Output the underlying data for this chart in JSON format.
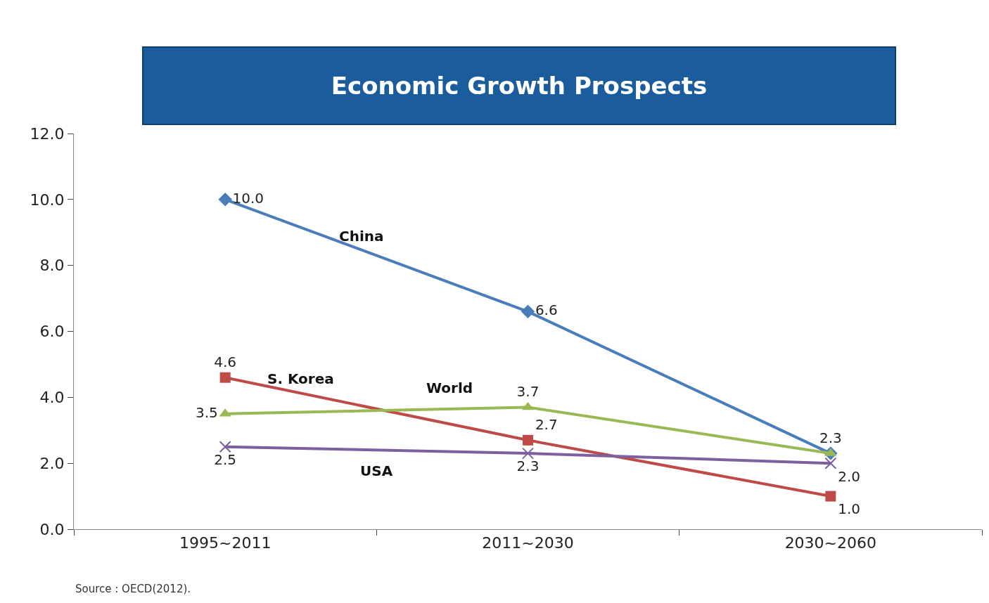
{
  "chart_data": {
    "type": "line",
    "title": "Economic Growth Prospects",
    "categories": [
      "1995~2011",
      "2011~2030",
      "2030~2060"
    ],
    "series": [
      {
        "name": "China",
        "color": "#4a7ebb",
        "marker": "diamond",
        "values": [
          10.0,
          6.6,
          2.3
        ],
        "value_labels": [
          "10.0",
          "6.6",
          "2.3"
        ]
      },
      {
        "name": "S. Korea",
        "color": "#be4b48",
        "marker": "square",
        "values": [
          4.6,
          2.7,
          1.0
        ],
        "value_labels": [
          "4.6",
          "2.7",
          "1.0"
        ]
      },
      {
        "name": "World",
        "color": "#98b954",
        "marker": "triangle",
        "values": [
          3.5,
          3.7,
          2.3
        ],
        "value_labels": [
          "3.5",
          "3.7",
          null
        ]
      },
      {
        "name": "USA",
        "color": "#7d60a0",
        "marker": "cross",
        "values": [
          2.5,
          2.3,
          2.0
        ],
        "value_labels": [
          "2.5",
          "2.3",
          "2.0"
        ]
      }
    ],
    "ylim": [
      0,
      12
    ],
    "yticks": [
      {
        "value": 0,
        "label": "0.0"
      },
      {
        "value": 2,
        "label": "2.0"
      },
      {
        "value": 4,
        "label": "4.0"
      },
      {
        "value": 6,
        "label": "6.0"
      },
      {
        "value": 8,
        "label": "8.0"
      },
      {
        "value": 10,
        "label": "10.0"
      },
      {
        "value": 12,
        "label": "12.0"
      }
    ],
    "legend": false,
    "line_style": "solid",
    "annotations": [
      "Source : OECD(2012)."
    ]
  }
}
